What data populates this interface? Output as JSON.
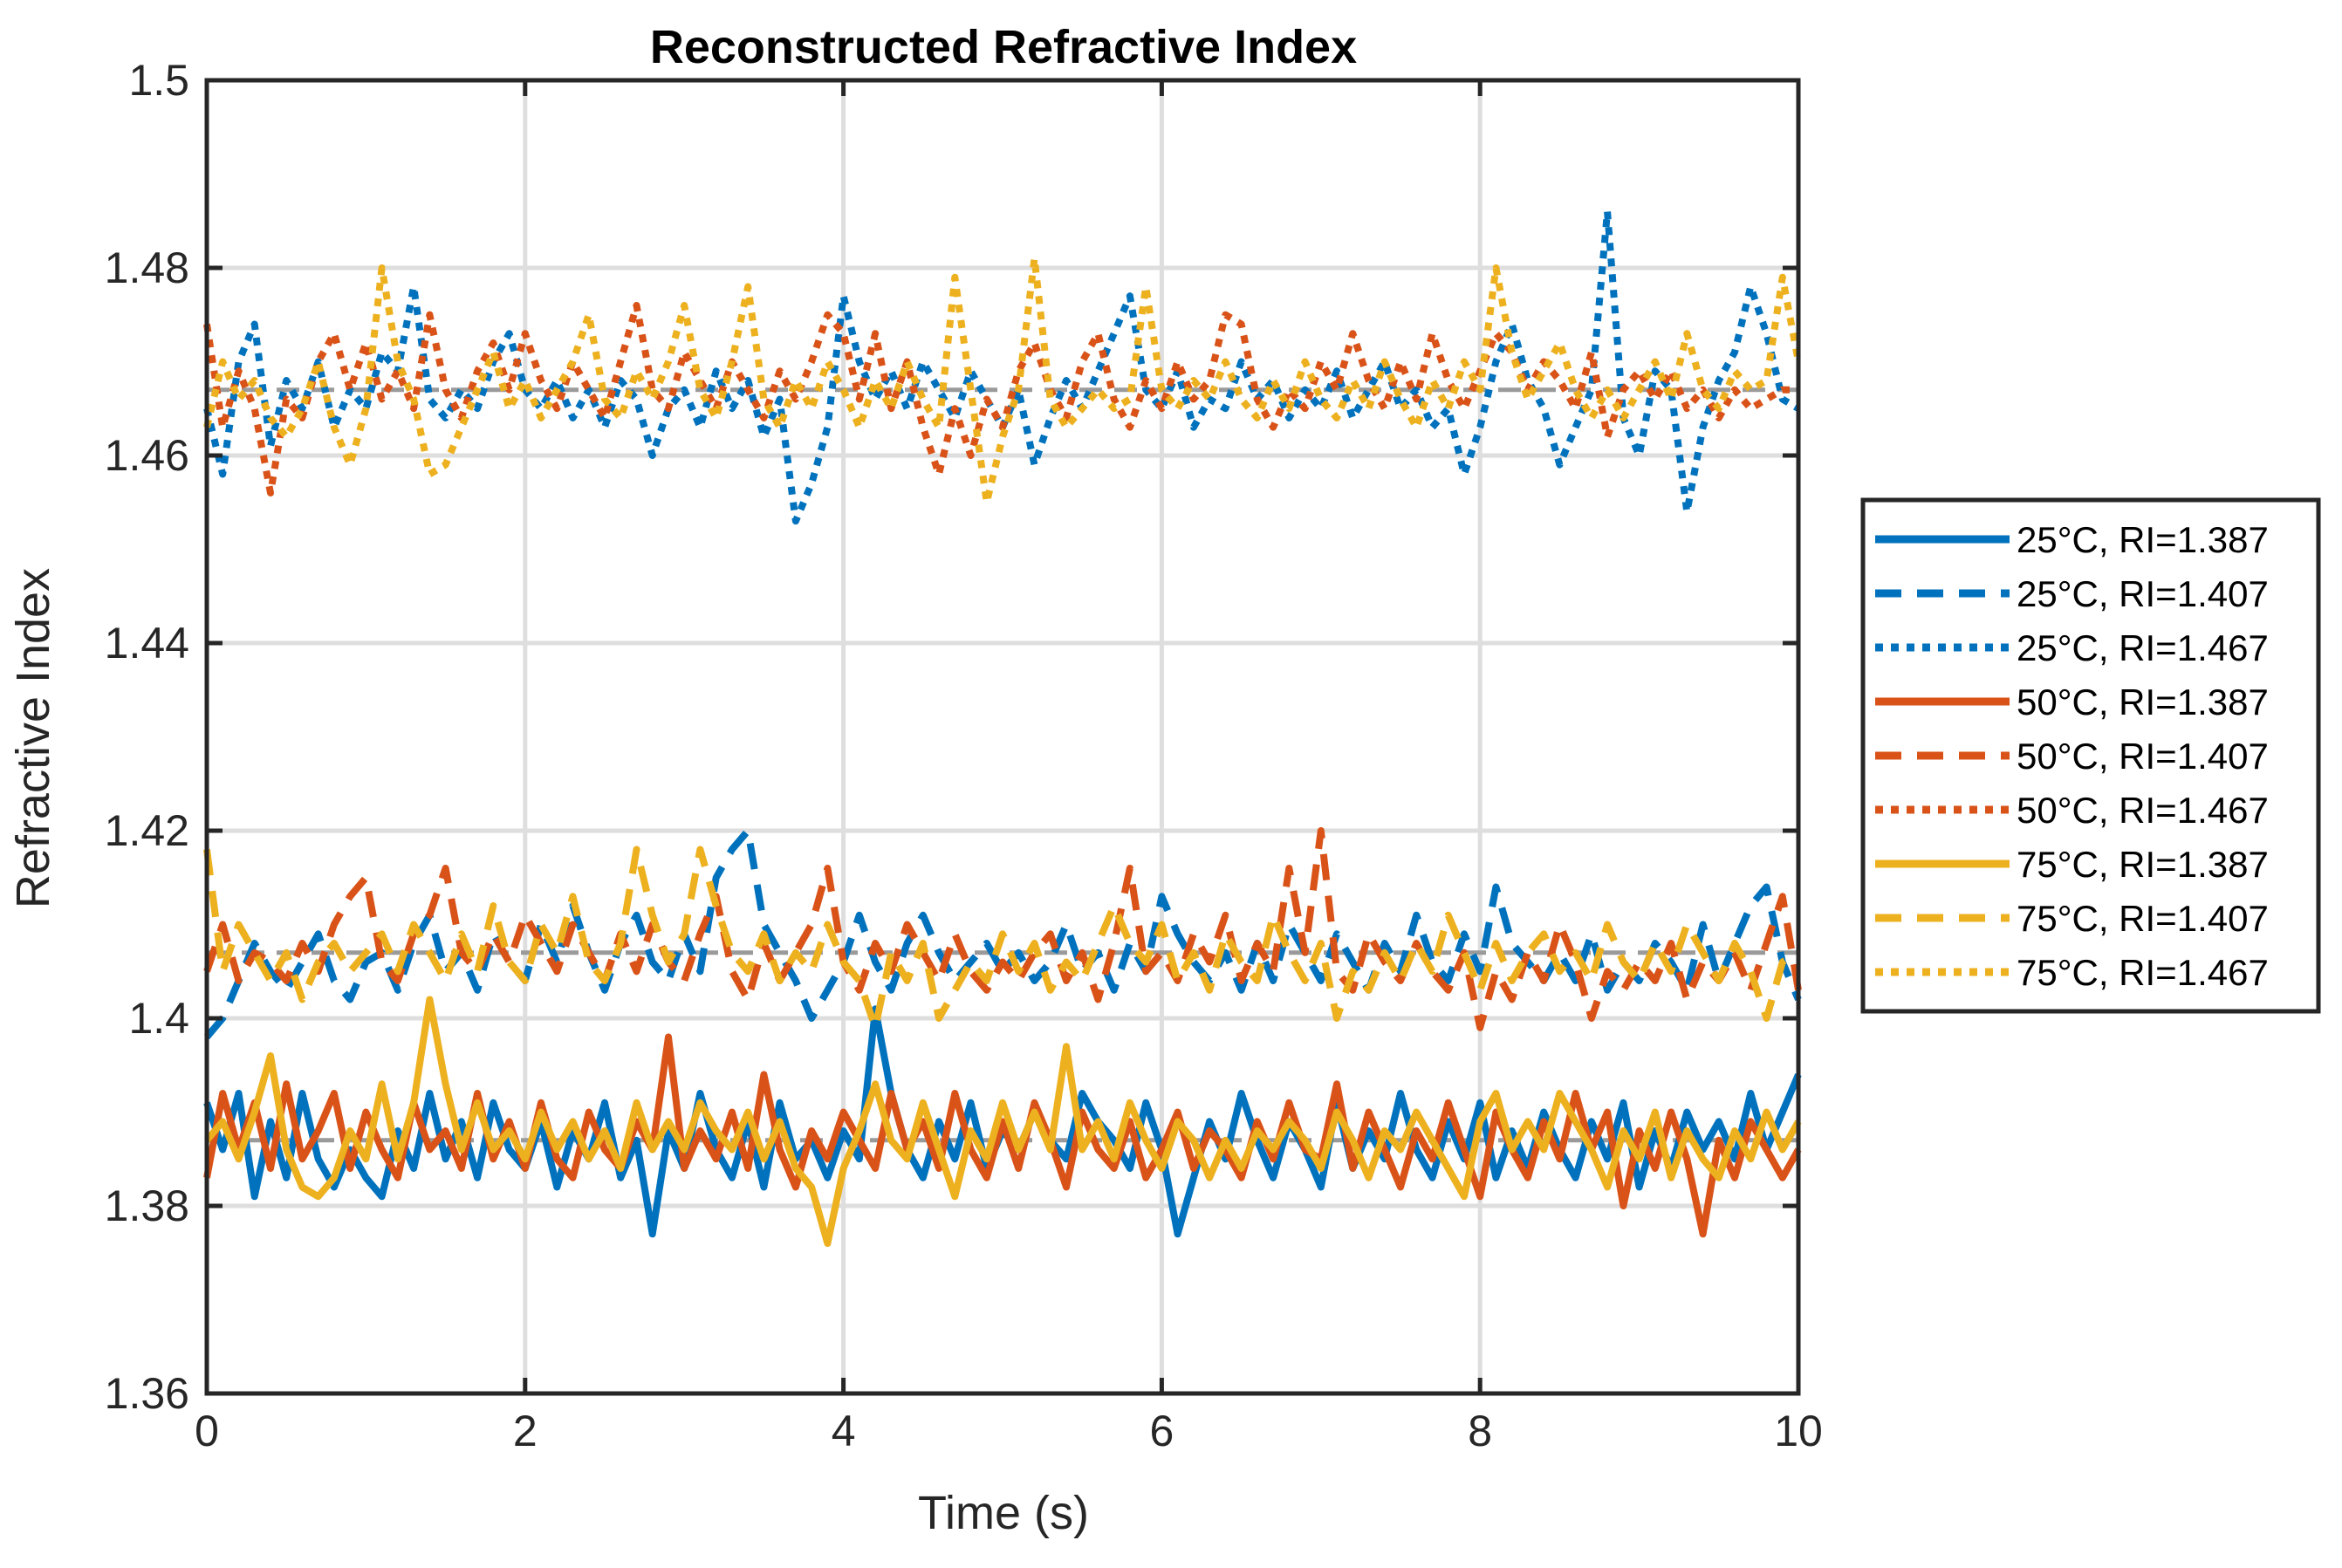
{
  "chart_data": {
    "type": "line",
    "title": "Reconstructed Refractive Index",
    "xlabel": "Time (s)",
    "ylabel": "Refractive Index",
    "xlim": [
      0,
      10
    ],
    "ylim": [
      1.36,
      1.5
    ],
    "xticks": [
      0,
      2,
      4,
      6,
      8,
      10
    ],
    "yticks": [
      1.36,
      1.38,
      1.4,
      1.42,
      1.44,
      1.46,
      1.48,
      1.5
    ],
    "xtick_labels": [
      "0",
      "2",
      "4",
      "6",
      "8",
      "10"
    ],
    "ytick_labels": [
      "1.36",
      "1.38",
      "1.4",
      "1.42",
      "1.44",
      "1.46",
      "1.48",
      "1.5"
    ],
    "grid": true,
    "legend_position": "outside-right",
    "reference_lines": [
      1.387,
      1.407,
      1.467
    ],
    "x": [
      0,
      0.1,
      0.2,
      0.3,
      0.4,
      0.5,
      0.6,
      0.7,
      0.8,
      0.9,
      1.0,
      1.1,
      1.2,
      1.3,
      1.4,
      1.5,
      1.6,
      1.7,
      1.8,
      1.9,
      2.0,
      2.1,
      2.2,
      2.3,
      2.4,
      2.5,
      2.6,
      2.7,
      2.8,
      2.9,
      3.0,
      3.1,
      3.2,
      3.3,
      3.4,
      3.5,
      3.6,
      3.7,
      3.8,
      3.9,
      4.0,
      4.1,
      4.2,
      4.3,
      4.4,
      4.5,
      4.6,
      4.7,
      4.8,
      4.9,
      5.0,
      5.1,
      5.2,
      5.3,
      5.4,
      5.5,
      5.6,
      5.7,
      5.8,
      5.9,
      6.0,
      6.1,
      6.2,
      6.3,
      6.4,
      6.5,
      6.6,
      6.7,
      6.8,
      6.9,
      7.0,
      7.1,
      7.2,
      7.3,
      7.4,
      7.5,
      7.6,
      7.7,
      7.8,
      7.9,
      8.0,
      8.1,
      8.2,
      8.3,
      8.4,
      8.5,
      8.6,
      8.7,
      8.8,
      8.9,
      9.0,
      9.1,
      9.2,
      9.3,
      9.4,
      9.5,
      9.6,
      9.7,
      9.8,
      9.9,
      10.0
    ],
    "series": [
      {
        "name": "25°C, RI=1.387",
        "color": "#0072BD",
        "dash": "solid",
        "values": [
          1.391,
          1.386,
          1.392,
          1.381,
          1.389,
          1.383,
          1.392,
          1.385,
          1.382,
          1.386,
          1.383,
          1.381,
          1.388,
          1.384,
          1.392,
          1.385,
          1.389,
          1.383,
          1.391,
          1.386,
          1.384,
          1.389,
          1.382,
          1.388,
          1.385,
          1.391,
          1.383,
          1.387,
          1.377,
          1.388,
          1.384,
          1.392,
          1.386,
          1.383,
          1.389,
          1.382,
          1.391,
          1.385,
          1.387,
          1.383,
          1.388,
          1.385,
          1.401,
          1.392,
          1.386,
          1.383,
          1.389,
          1.385,
          1.391,
          1.384,
          1.388,
          1.386,
          1.39,
          1.387,
          1.385,
          1.392,
          1.389,
          1.387,
          1.384,
          1.391,
          1.386,
          1.377,
          1.383,
          1.389,
          1.385,
          1.392,
          1.387,
          1.383,
          1.389,
          1.386,
          1.382,
          1.391,
          1.384,
          1.388,
          1.385,
          1.392,
          1.386,
          1.383,
          1.389,
          1.385,
          1.391,
          1.383,
          1.388,
          1.384,
          1.39,
          1.386,
          1.383,
          1.389,
          1.385,
          1.391,
          1.382,
          1.388,
          1.384,
          1.39,
          1.386,
          1.389,
          1.385,
          1.392,
          1.386,
          1.39,
          1.394
        ]
      },
      {
        "name": "25°C, RI=1.407",
        "color": "#0072BD",
        "dash": "dashed",
        "values": [
          1.398,
          1.4,
          1.404,
          1.408,
          1.405,
          1.403,
          1.406,
          1.409,
          1.404,
          1.402,
          1.406,
          1.407,
          1.403,
          1.408,
          1.411,
          1.405,
          1.407,
          1.403,
          1.409,
          1.406,
          1.404,
          1.41,
          1.406,
          1.412,
          1.407,
          1.403,
          1.408,
          1.411,
          1.406,
          1.404,
          1.409,
          1.405,
          1.415,
          1.418,
          1.42,
          1.41,
          1.407,
          1.404,
          1.4,
          1.403,
          1.406,
          1.411,
          1.406,
          1.403,
          1.408,
          1.411,
          1.407,
          1.404,
          1.406,
          1.408,
          1.405,
          1.407,
          1.404,
          1.406,
          1.41,
          1.405,
          1.407,
          1.403,
          1.408,
          1.405,
          1.413,
          1.409,
          1.406,
          1.404,
          1.407,
          1.403,
          1.408,
          1.404,
          1.41,
          1.407,
          1.404,
          1.409,
          1.406,
          1.403,
          1.408,
          1.405,
          1.411,
          1.406,
          1.404,
          1.409,
          1.405,
          1.414,
          1.408,
          1.406,
          1.404,
          1.407,
          1.404,
          1.409,
          1.403,
          1.406,
          1.404,
          1.408,
          1.406,
          1.403,
          1.41,
          1.404,
          1.408,
          1.412,
          1.414,
          1.406,
          1.402
        ]
      },
      {
        "name": "25°C, RI=1.467",
        "color": "#0072BD",
        "dash": "dotted",
        "values": [
          1.465,
          1.458,
          1.47,
          1.474,
          1.461,
          1.468,
          1.465,
          1.47,
          1.463,
          1.467,
          1.465,
          1.471,
          1.469,
          1.478,
          1.466,
          1.464,
          1.467,
          1.465,
          1.47,
          1.473,
          1.467,
          1.465,
          1.468,
          1.464,
          1.467,
          1.463,
          1.468,
          1.466,
          1.46,
          1.465,
          1.467,
          1.463,
          1.469,
          1.465,
          1.468,
          1.462,
          1.466,
          1.453,
          1.457,
          1.463,
          1.477,
          1.47,
          1.466,
          1.469,
          1.465,
          1.47,
          1.467,
          1.464,
          1.469,
          1.466,
          1.463,
          1.467,
          1.459,
          1.464,
          1.468,
          1.465,
          1.469,
          1.473,
          1.477,
          1.467,
          1.465,
          1.469,
          1.463,
          1.466,
          1.465,
          1.47,
          1.466,
          1.468,
          1.464,
          1.467,
          1.465,
          1.469,
          1.464,
          1.467,
          1.47,
          1.465,
          1.467,
          1.463,
          1.465,
          1.458,
          1.463,
          1.47,
          1.474,
          1.468,
          1.465,
          1.459,
          1.463,
          1.467,
          1.486,
          1.464,
          1.46,
          1.469,
          1.467,
          1.454,
          1.463,
          1.468,
          1.471,
          1.478,
          1.473,
          1.466,
          1.465
        ]
      },
      {
        "name": "50°C, RI=1.387",
        "color": "#D95319",
        "dash": "solid",
        "values": [
          1.383,
          1.392,
          1.386,
          1.391,
          1.384,
          1.393,
          1.385,
          1.388,
          1.392,
          1.384,
          1.39,
          1.386,
          1.383,
          1.391,
          1.386,
          1.388,
          1.384,
          1.392,
          1.385,
          1.389,
          1.384,
          1.391,
          1.385,
          1.383,
          1.39,
          1.386,
          1.384,
          1.389,
          1.386,
          1.398,
          1.384,
          1.388,
          1.385,
          1.39,
          1.384,
          1.394,
          1.386,
          1.382,
          1.388,
          1.385,
          1.39,
          1.387,
          1.384,
          1.392,
          1.386,
          1.389,
          1.384,
          1.392,
          1.386,
          1.383,
          1.389,
          1.384,
          1.391,
          1.387,
          1.382,
          1.39,
          1.386,
          1.384,
          1.389,
          1.383,
          1.386,
          1.39,
          1.384,
          1.388,
          1.386,
          1.383,
          1.389,
          1.385,
          1.391,
          1.386,
          1.385,
          1.393,
          1.384,
          1.39,
          1.386,
          1.382,
          1.388,
          1.385,
          1.391,
          1.386,
          1.381,
          1.39,
          1.386,
          1.383,
          1.389,
          1.385,
          1.392,
          1.386,
          1.39,
          1.38,
          1.388,
          1.384,
          1.39,
          1.385,
          1.377,
          1.387,
          1.383,
          1.389,
          1.386,
          1.383,
          1.386
        ]
      },
      {
        "name": "50°C, RI=1.407",
        "color": "#D95319",
        "dash": "dashed",
        "values": [
          1.405,
          1.41,
          1.404,
          1.407,
          1.406,
          1.404,
          1.408,
          1.405,
          1.41,
          1.413,
          1.415,
          1.406,
          1.404,
          1.409,
          1.411,
          1.416,
          1.407,
          1.405,
          1.409,
          1.406,
          1.411,
          1.408,
          1.405,
          1.41,
          1.407,
          1.404,
          1.409,
          1.405,
          1.41,
          1.406,
          1.404,
          1.409,
          1.413,
          1.405,
          1.402,
          1.408,
          1.404,
          1.407,
          1.41,
          1.416,
          1.406,
          1.403,
          1.408,
          1.405,
          1.41,
          1.407,
          1.404,
          1.409,
          1.405,
          1.403,
          1.406,
          1.404,
          1.407,
          1.409,
          1.404,
          1.407,
          1.402,
          1.408,
          1.416,
          1.405,
          1.407,
          1.404,
          1.409,
          1.406,
          1.411,
          1.404,
          1.408,
          1.405,
          1.416,
          1.407,
          1.42,
          1.405,
          1.403,
          1.409,
          1.406,
          1.404,
          1.408,
          1.405,
          1.403,
          1.407,
          1.399,
          1.405,
          1.402,
          1.407,
          1.404,
          1.41,
          1.406,
          1.4,
          1.405,
          1.403,
          1.406,
          1.404,
          1.408,
          1.402,
          1.406,
          1.404,
          1.407,
          1.403,
          1.408,
          1.413,
          1.403
        ]
      },
      {
        "name": "50°C, RI=1.467",
        "color": "#D95319",
        "dash": "dotted",
        "values": [
          1.474,
          1.463,
          1.469,
          1.465,
          1.456,
          1.466,
          1.464,
          1.47,
          1.473,
          1.467,
          1.472,
          1.466,
          1.469,
          1.465,
          1.475,
          1.467,
          1.464,
          1.469,
          1.472,
          1.467,
          1.473,
          1.468,
          1.465,
          1.47,
          1.467,
          1.464,
          1.47,
          1.476,
          1.467,
          1.465,
          1.471,
          1.468,
          1.465,
          1.47,
          1.467,
          1.464,
          1.469,
          1.466,
          1.47,
          1.475,
          1.473,
          1.466,
          1.473,
          1.465,
          1.47,
          1.463,
          1.458,
          1.465,
          1.46,
          1.466,
          1.463,
          1.469,
          1.472,
          1.467,
          1.464,
          1.47,
          1.473,
          1.466,
          1.463,
          1.468,
          1.465,
          1.47,
          1.466,
          1.468,
          1.475,
          1.474,
          1.466,
          1.463,
          1.467,
          1.465,
          1.47,
          1.467,
          1.473,
          1.468,
          1.465,
          1.47,
          1.466,
          1.473,
          1.468,
          1.465,
          1.469,
          1.473,
          1.471,
          1.467,
          1.47,
          1.468,
          1.465,
          1.471,
          1.462,
          1.467,
          1.469,
          1.466,
          1.469,
          1.465,
          1.467,
          1.464,
          1.467,
          1.465,
          1.466,
          1.467,
          1.467
        ]
      },
      {
        "name": "75°C, RI=1.387",
        "color": "#EDB120",
        "dash": "solid",
        "values": [
          1.387,
          1.389,
          1.385,
          1.39,
          1.396,
          1.386,
          1.382,
          1.381,
          1.383,
          1.388,
          1.385,
          1.393,
          1.385,
          1.391,
          1.402,
          1.393,
          1.386,
          1.391,
          1.386,
          1.388,
          1.385,
          1.39,
          1.386,
          1.389,
          1.385,
          1.388,
          1.384,
          1.391,
          1.386,
          1.389,
          1.386,
          1.391,
          1.388,
          1.386,
          1.39,
          1.385,
          1.389,
          1.384,
          1.382,
          1.376,
          1.384,
          1.388,
          1.393,
          1.387,
          1.385,
          1.391,
          1.386,
          1.381,
          1.388,
          1.385,
          1.391,
          1.386,
          1.39,
          1.386,
          1.397,
          1.386,
          1.389,
          1.385,
          1.391,
          1.387,
          1.384,
          1.389,
          1.387,
          1.383,
          1.387,
          1.384,
          1.388,
          1.386,
          1.389,
          1.387,
          1.384,
          1.39,
          1.387,
          1.383,
          1.388,
          1.386,
          1.39,
          1.387,
          1.384,
          1.381,
          1.389,
          1.392,
          1.386,
          1.389,
          1.386,
          1.392,
          1.389,
          1.386,
          1.382,
          1.388,
          1.385,
          1.39,
          1.383,
          1.388,
          1.385,
          1.383,
          1.388,
          1.385,
          1.39,
          1.386,
          1.389
        ]
      },
      {
        "name": "75°C, RI=1.407",
        "color": "#EDB120",
        "dash": "dashed",
        "values": [
          1.418,
          1.405,
          1.41,
          1.407,
          1.404,
          1.407,
          1.402,
          1.406,
          1.408,
          1.405,
          1.407,
          1.409,
          1.405,
          1.41,
          1.407,
          1.404,
          1.409,
          1.405,
          1.412,
          1.406,
          1.404,
          1.41,
          1.407,
          1.413,
          1.406,
          1.404,
          1.408,
          1.418,
          1.411,
          1.406,
          1.409,
          1.418,
          1.412,
          1.407,
          1.405,
          1.409,
          1.404,
          1.407,
          1.405,
          1.41,
          1.406,
          1.404,
          1.399,
          1.407,
          1.404,
          1.408,
          1.4,
          1.403,
          1.406,
          1.404,
          1.409,
          1.405,
          1.408,
          1.403,
          1.406,
          1.404,
          1.408,
          1.412,
          1.408,
          1.406,
          1.41,
          1.404,
          1.407,
          1.403,
          1.409,
          1.406,
          1.404,
          1.411,
          1.407,
          1.404,
          1.408,
          1.4,
          1.405,
          1.403,
          1.407,
          1.404,
          1.408,
          1.405,
          1.411,
          1.407,
          1.403,
          1.408,
          1.404,
          1.407,
          1.409,
          1.405,
          1.407,
          1.404,
          1.41,
          1.406,
          1.404,
          1.408,
          1.405,
          1.41,
          1.407,
          1.404,
          1.408,
          1.405,
          1.4,
          1.406,
          1.407
        ]
      },
      {
        "name": "75°C, RI=1.467",
        "color": "#EDB120",
        "dash": "dotted",
        "values": [
          1.463,
          1.47,
          1.466,
          1.468,
          1.464,
          1.462,
          1.465,
          1.47,
          1.463,
          1.459,
          1.465,
          1.48,
          1.47,
          1.466,
          1.458,
          1.459,
          1.463,
          1.467,
          1.471,
          1.465,
          1.468,
          1.464,
          1.467,
          1.47,
          1.475,
          1.466,
          1.464,
          1.469,
          1.466,
          1.47,
          1.476,
          1.467,
          1.464,
          1.47,
          1.478,
          1.466,
          1.463,
          1.468,
          1.465,
          1.47,
          1.467,
          1.463,
          1.468,
          1.465,
          1.47,
          1.466,
          1.463,
          1.479,
          1.467,
          1.455,
          1.462,
          1.467,
          1.481,
          1.466,
          1.463,
          1.465,
          1.467,
          1.465,
          1.466,
          1.478,
          1.467,
          1.465,
          1.468,
          1.466,
          1.47,
          1.466,
          1.464,
          1.468,
          1.465,
          1.47,
          1.466,
          1.464,
          1.468,
          1.465,
          1.47,
          1.466,
          1.463,
          1.468,
          1.465,
          1.47,
          1.467,
          1.48,
          1.471,
          1.466,
          1.469,
          1.472,
          1.467,
          1.464,
          1.467,
          1.464,
          1.467,
          1.47,
          1.466,
          1.473,
          1.467,
          1.465,
          1.469,
          1.467,
          1.468,
          1.479,
          1.47
        ]
      }
    ]
  }
}
